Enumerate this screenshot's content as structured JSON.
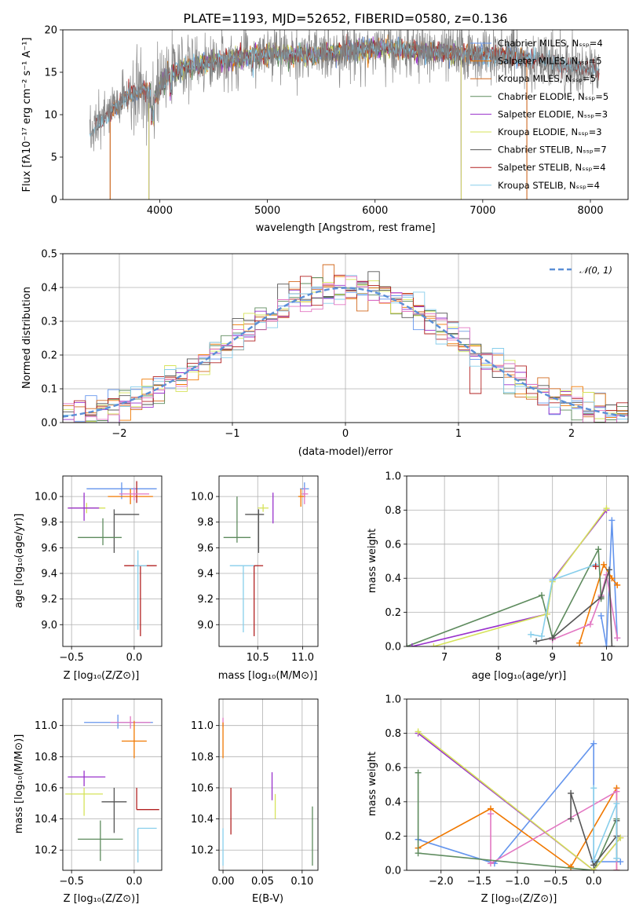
{
  "figure": {
    "title": "PLATE=1193, MJD=52652, FIBERID=0580, z=0.136"
  },
  "panels": {
    "spectrum": {
      "xlabel": "wavelength [Angstrom, rest frame]",
      "ylabel": "Flux [fλ10⁻¹⁷ erg cm⁻² s⁻¹ A⁻¹]"
    },
    "residuals": {
      "xlabel": "(data-model)/error",
      "ylabel": "Normed distribution",
      "legend": "𝒩(0, 1)"
    },
    "age_vs_Z": {
      "xlabel": "Z [log₁₀(Z/Z⊙)]",
      "ylabel": "age  [log₁₀(age/yr)]"
    },
    "age_vs_mass": {
      "xlabel": "mass [log₁₀(M/M⊙)]"
    },
    "weight_vs_age": {
      "xlabel": "age  [log₁₀(age/yr)]",
      "ylabel": "mass weight"
    },
    "mass_vs_Z": {
      "xlabel": "Z [log₁₀(Z/Z⊙)]",
      "ylabel": "mass [log₁₀(M/M⊙)]"
    },
    "mass_vs_ebv": {
      "xlabel": "E(B-V)"
    },
    "weight_vs_Z": {
      "xlabel": "Z [log₁₀(Z/Z⊙)]",
      "ylabel": "mass weight"
    }
  },
  "chart_data": [
    {
      "id": "spectrum",
      "type": "line",
      "title": "PLATE=1193, MJD=52652, FIBERID=0580, z=0.136",
      "xlabel": "wavelength [Angstrom, rest frame]",
      "ylabel": "Flux [f_λ 10^-17 erg cm^-2 s^-1 A^-1]",
      "xlim": [
        3100,
        8350
      ],
      "ylim": [
        0,
        20
      ],
      "xticks": [
        4000,
        5000,
        6000,
        7000,
        8000
      ],
      "yticks": [
        0,
        5,
        10,
        15,
        20
      ],
      "grid": false,
      "legend_position": "top-right",
      "data_color": "#808080",
      "profile_x": [
        3350,
        3450,
        3550,
        3700,
        3850,
        3950,
        4100,
        4300,
        4500,
        4800,
        5100,
        5400,
        5700,
        6000,
        6300,
        6600,
        6900,
        7200,
        7500,
        7800,
        8100
      ],
      "profile_y": [
        8.2,
        9.0,
        10.5,
        12.2,
        13.0,
        12.2,
        15.0,
        15.8,
        16.2,
        16.8,
        17.2,
        17.0,
        17.5,
        17.8,
        17.6,
        17.3,
        17.2,
        17.0,
        16.5,
        15.8,
        15.0
      ],
      "series": [
        {
          "name": "Chabrier MILES, Nₛₛₚ=4",
          "color": "#6495ed",
          "xrange": [
            3540,
            7410
          ]
        },
        {
          "name": "Salpeter MILES, Nₛₛₚ=5",
          "color": "#f07800",
          "xrange": [
            3540,
            7410
          ]
        },
        {
          "name": "Kroupa MILES, Nₛₛₚ=5",
          "color": "#d2691e",
          "xrange": [
            3540,
            7410
          ]
        },
        {
          "name": "Chabrier ELODIE, Nₛₛₚ=5",
          "color": "#5e8b5e",
          "xrange": [
            3900,
            6800
          ]
        },
        {
          "name": "Salpeter ELODIE, Nₛₛₚ=3",
          "color": "#9932cc",
          "xrange": [
            3900,
            6800
          ]
        },
        {
          "name": "Kroupa ELODIE, Nₛₛₚ=3",
          "color": "#d6e35a",
          "xrange": [
            3900,
            6800
          ]
        },
        {
          "name": "Chabrier STELIB, Nₛₛₚ=7",
          "color": "#555555",
          "xrange": [
            3400,
            8080
          ]
        },
        {
          "name": "Salpeter STELIB, Nₛₛₚ=4",
          "color": "#b22222",
          "xrange": [
            3400,
            8080
          ]
        },
        {
          "name": "Kroupa STELIB, Nₛₛₚ=4",
          "color": "#87ceeb",
          "xrange": [
            3350,
            8080
          ]
        }
      ]
    },
    {
      "id": "residuals",
      "type": "histogram",
      "xlabel": "(data-model)/error",
      "ylabel": "Normed distribution",
      "xlim": [
        -2.5,
        2.5
      ],
      "ylim": [
        0,
        0.5
      ],
      "xticks": [
        -2,
        -1,
        0,
        1,
        2
      ],
      "yticks": [
        0.0,
        0.1,
        0.2,
        0.3,
        0.4,
        0.5
      ],
      "grid": true,
      "bin_width": 0.1,
      "legend_position": "top-right",
      "reference_curve": {
        "name": "𝒩(0, 1)",
        "mean": 0,
        "sigma": 1,
        "color": "#5b8fd6",
        "style": "dashed"
      },
      "histogram_colors": [
        "#6495ed",
        "#f07800",
        "#d2691e",
        "#5e8b5e",
        "#9932cc",
        "#d6e35a",
        "#555555",
        "#b22222",
        "#87ceeb",
        "#e377c2"
      ]
    },
    {
      "id": "age_vs_Z",
      "type": "errorbar",
      "xlabel": "Z [log10(Z/Z⊙)]",
      "ylabel": "age [log10(age/yr)]",
      "xlim": [
        -0.57,
        0.22
      ],
      "ylim": [
        8.83,
        10.16
      ],
      "xticks": [
        -0.5,
        0.0
      ],
      "yticks": [
        9.0,
        9.2,
        9.4,
        9.6,
        9.8,
        10.0
      ],
      "grid": true,
      "points": [
        {
          "color": "#6495ed",
          "x": -0.1,
          "xerr": [
            0.28,
            0.28
          ],
          "y": 10.06,
          "yerr": [
            0.08,
            0.05
          ]
        },
        {
          "color": "#f07800",
          "x": -0.03,
          "xerr": [
            0.18,
            0.18
          ],
          "y": 10.0,
          "yerr": [
            0.06,
            0.06
          ]
        },
        {
          "color": "#b22222",
          "x": 0.02,
          "xerr": [
            0.0,
            0.0
          ],
          "y": 10.05,
          "yerr": [
            0.1,
            0.07
          ]
        },
        {
          "color": "#e377c2",
          "x": 0.0,
          "xerr": [
            0.12,
            0.12
          ],
          "y": 10.02,
          "yerr": [
            0.05,
            0.05
          ]
        },
        {
          "color": "#d6e35a",
          "x": -0.38,
          "xerr": [
            0.15,
            0.15
          ],
          "y": 9.91,
          "yerr": [
            0.04,
            0.04
          ]
        },
        {
          "color": "#9932cc",
          "x": -0.4,
          "xerr": [
            0.13,
            0.12
          ],
          "y": 9.91,
          "yerr": [
            0.1,
            0.12
          ]
        },
        {
          "color": "#555555",
          "x": -0.16,
          "xerr": [
            0.0,
            0.2
          ],
          "y": 9.86,
          "yerr": [
            0.3,
            0.04
          ]
        },
        {
          "color": "#5e8b5e",
          "x": -0.25,
          "xerr": [
            0.2,
            0.15
          ],
          "y": 9.68,
          "yerr": [
            0.06,
            0.15
          ]
        },
        {
          "color": "#87ceeb",
          "x": 0.03,
          "xerr": [
            0.0,
            0.0
          ],
          "y": 9.46,
          "yerr": [
            0.5,
            0.12
          ]
        },
        {
          "color": "#b22222",
          "x": 0.05,
          "xerr": [
            0.13,
            0.13
          ],
          "y": 9.46,
          "yerr": [
            0.55,
            0.0
          ]
        },
        {
          "color": "#87ceeb",
          "x": 0.0,
          "xerr": [
            0.0,
            0.1
          ],
          "y": 9.46,
          "yerr": [
            0.0,
            0.0
          ]
        }
      ]
    },
    {
      "id": "age_vs_mass",
      "type": "errorbar",
      "xlabel": "mass [log10(M/M⊙)]",
      "xlim": [
        10.07,
        11.17
      ],
      "ylim": [
        8.83,
        10.16
      ],
      "xticks": [
        10.5,
        11.0
      ],
      "yticks": [
        9.0,
        9.2,
        9.4,
        9.6,
        9.8,
        10.0
      ],
      "grid": true,
      "points": [
        {
          "color": "#6495ed",
          "x": 11.02,
          "xerr": [
            0.05,
            0.05
          ],
          "y": 10.06,
          "yerr": [
            0.06,
            0.05
          ]
        },
        {
          "color": "#f07800",
          "x": 10.98,
          "xerr": [
            0.03,
            0.05
          ],
          "y": 10.0,
          "yerr": [
            0.08,
            0.06
          ]
        },
        {
          "color": "#e377c2",
          "x": 11.02,
          "xerr": [
            0.03,
            0.04
          ],
          "y": 10.02,
          "yerr": [
            0.08,
            0.05
          ]
        },
        {
          "color": "#9932cc",
          "x": 10.67,
          "xerr": [
            0.0,
            0.0
          ],
          "y": 9.91,
          "yerr": [
            0.12,
            0.12
          ]
        },
        {
          "color": "#d6e35a",
          "x": 10.56,
          "xerr": [
            0.06,
            0.06
          ],
          "y": 9.91,
          "yerr": [
            0.03,
            0.03
          ]
        },
        {
          "color": "#555555",
          "x": 10.51,
          "xerr": [
            0.15,
            0.06
          ],
          "y": 9.86,
          "yerr": [
            0.3,
            0.04
          ]
        },
        {
          "color": "#5e8b5e",
          "x": 10.27,
          "xerr": [
            0.15,
            0.15
          ],
          "y": 9.68,
          "yerr": [
            0.04,
            0.32
          ]
        },
        {
          "color": "#87ceeb",
          "x": 10.34,
          "xerr": [
            0.15,
            0.15
          ],
          "y": 9.46,
          "yerr": [
            0.52,
            0.0
          ]
        },
        {
          "color": "#b22222",
          "x": 10.46,
          "xerr": [
            0.0,
            0.1
          ],
          "y": 9.46,
          "yerr": [
            0.55,
            0.0
          ]
        }
      ]
    },
    {
      "id": "weight_vs_age",
      "type": "line",
      "xlabel": "age [log10(age/yr)]",
      "ylabel": "mass weight",
      "xlim": [
        6.3,
        10.4
      ],
      "ylim": [
        0,
        1.0
      ],
      "xticks": [
        7,
        8,
        9,
        10
      ],
      "yticks": [
        0.0,
        0.2,
        0.4,
        0.6,
        0.8,
        1.0
      ],
      "grid": true,
      "series": [
        {
          "color": "#6495ed",
          "x": [
            9.9,
            10.0,
            10.1,
            10.2
          ],
          "y": [
            0.18,
            0.0,
            0.74,
            0.05
          ]
        },
        {
          "color": "#f07800",
          "x": [
            9.5,
            9.95,
            10.1,
            10.2
          ],
          "y": [
            0.02,
            0.48,
            0.4,
            0.36
          ]
        },
        {
          "color": "#e377c2",
          "x": [
            9.0,
            9.7,
            9.9,
            10.0,
            10.2
          ],
          "y": [
            0.04,
            0.13,
            0.3,
            0.42,
            0.05
          ]
        },
        {
          "color": "#5e8b5e",
          "x": [
            6.3,
            8.8,
            9.0,
            9.85,
            9.9
          ],
          "y": [
            0.0,
            0.3,
            0.05,
            0.57,
            0.28
          ]
        },
        {
          "color": "#9932cc",
          "x": [
            6.4,
            8.9,
            9.0,
            10.0
          ],
          "y": [
            0.0,
            0.19,
            0.39,
            0.8
          ]
        },
        {
          "color": "#d6e35a",
          "x": [
            6.8,
            8.9,
            9.0,
            10.0
          ],
          "y": [
            0.0,
            0.19,
            0.38,
            0.81
          ]
        },
        {
          "color": "#555555",
          "x": [
            8.7,
            9.0,
            9.9,
            10.05,
            10.1
          ],
          "y": [
            0.03,
            0.05,
            0.29,
            0.45,
            0.0
          ]
        },
        {
          "color": "#87ceeb",
          "x": [
            8.6,
            8.8,
            9.0,
            9.8
          ],
          "y": [
            0.07,
            0.06,
            0.39,
            0.48
          ]
        },
        {
          "color": "#b22222",
          "x": [
            9.8
          ],
          "y": [
            0.47
          ]
        }
      ]
    },
    {
      "id": "mass_vs_Z",
      "type": "errorbar",
      "xlabel": "Z [log10(Z/Z⊙)]",
      "ylabel": "mass [log10(M/M⊙)]",
      "xlim": [
        -0.57,
        0.22
      ],
      "ylim": [
        10.07,
        11.17
      ],
      "xticks": [
        -0.5,
        0.0
      ],
      "yticks": [
        10.2,
        10.4,
        10.6,
        10.8,
        11.0
      ],
      "grid": true,
      "points": [
        {
          "color": "#6495ed",
          "x": -0.13,
          "xerr": [
            0.27,
            0.28
          ],
          "y": 11.02,
          "yerr": [
            0.04,
            0.05
          ]
        },
        {
          "color": "#e377c2",
          "x": -0.03,
          "xerr": [
            0.16,
            0.16
          ],
          "y": 11.02,
          "yerr": [
            0.04,
            0.04
          ]
        },
        {
          "color": "#f07800",
          "x": 0.0,
          "xerr": [
            0.1,
            0.1
          ],
          "y": 10.9,
          "yerr": [
            0.11,
            0.13
          ]
        },
        {
          "color": "#9932cc",
          "x": -0.4,
          "xerr": [
            0.13,
            0.17
          ],
          "y": 10.67,
          "yerr": [
            0.06,
            0.04
          ]
        },
        {
          "color": "#d6e35a",
          "x": -0.4,
          "xerr": [
            0.15,
            0.15
          ],
          "y": 10.56,
          "yerr": [
            0.14,
            0.04
          ]
        },
        {
          "color": "#555555",
          "x": -0.16,
          "xerr": [
            0.1,
            0.1
          ],
          "y": 10.51,
          "yerr": [
            0.2,
            0.09
          ]
        },
        {
          "color": "#b22222",
          "x": 0.02,
          "xerr": [
            0.0,
            0.18
          ],
          "y": 10.46,
          "yerr": [
            0.0,
            0.14
          ]
        },
        {
          "color": "#87ceeb",
          "x": 0.03,
          "xerr": [
            0.0,
            0.15
          ],
          "y": 10.34,
          "yerr": [
            0.22,
            0.0
          ]
        },
        {
          "color": "#5e8b5e",
          "x": -0.27,
          "xerr": [
            0.18,
            0.18
          ],
          "y": 10.27,
          "yerr": [
            0.14,
            0.12
          ]
        }
      ]
    },
    {
      "id": "mass_vs_ebv",
      "type": "errorbar",
      "xlabel": "E(B-V)",
      "xlim": [
        -0.005,
        0.12
      ],
      "ylim": [
        10.07,
        11.17
      ],
      "xticks": [
        0.0,
        0.05,
        0.1
      ],
      "yticks": [
        10.2,
        10.4,
        10.6,
        10.8,
        11.0
      ],
      "grid": true,
      "points": [
        {
          "color": "#e377c2",
          "x": 0.0,
          "xerr": [
            0.0,
            0.0
          ],
          "y": 11.02,
          "yerr": [
            0.03,
            0.03
          ]
        },
        {
          "color": "#f07800",
          "x": 0.0,
          "xerr": [
            0.0,
            0.0
          ],
          "y": 10.9,
          "yerr": [
            0.11,
            0.12
          ]
        },
        {
          "color": "#b22222",
          "x": 0.01,
          "xerr": [
            0.0,
            0.0
          ],
          "y": 10.46,
          "yerr": [
            0.16,
            0.14
          ]
        },
        {
          "color": "#9932cc",
          "x": 0.062,
          "xerr": [
            0.0,
            0.0
          ],
          "y": 10.62,
          "yerr": [
            0.1,
            0.08
          ]
        },
        {
          "color": "#d6e35a",
          "x": 0.066,
          "xerr": [
            0.0,
            0.0
          ],
          "y": 10.52,
          "yerr": [
            0.12,
            0.04
          ]
        },
        {
          "color": "#87ceeb",
          "x": 0.0,
          "xerr": [
            0.0,
            0.0
          ],
          "y": 10.34,
          "yerr": [
            0.24,
            0.0
          ]
        },
        {
          "color": "#5e8b5e",
          "x": 0.113,
          "xerr": [
            0.0,
            0.0
          ],
          "y": 10.3,
          "yerr": [
            0.2,
            0.18
          ]
        }
      ]
    },
    {
      "id": "weight_vs_Z",
      "type": "line",
      "xlabel": "Z [log10(Z/Z⊙)]",
      "ylabel": "mass weight",
      "xlim": [
        -2.45,
        0.45
      ],
      "ylim": [
        0,
        1.0
      ],
      "xticks": [
        -2.0,
        -1.5,
        -1.0,
        -0.5,
        0.0
      ],
      "yticks": [
        0.0,
        0.2,
        0.4,
        0.6,
        0.8,
        1.0
      ],
      "grid": true,
      "series": [
        {
          "color": "#6495ed",
          "x": [
            -2.3,
            -1.3,
            0.0,
            0.0,
            0.35
          ],
          "y": [
            0.18,
            0.04,
            0.74,
            0.05,
            0.05
          ]
        },
        {
          "color": "#f07800",
          "x": [
            -2.3,
            -1.35,
            -0.3,
            0.3,
            0.3
          ],
          "y": [
            0.13,
            0.36,
            0.02,
            0.48,
            0.0
          ]
        },
        {
          "color": "#e377c2",
          "x": [
            -1.35,
            -1.35,
            0.3,
            0.3
          ],
          "y": [
            0.33,
            0.04,
            0.46,
            0.0
          ]
        },
        {
          "color": "#5e8b5e",
          "x": [
            -2.3,
            -2.3,
            0.0,
            0.3,
            0.3
          ],
          "y": [
            0.57,
            0.1,
            0.0,
            0.3,
            0.07
          ]
        },
        {
          "color": "#9932cc",
          "x": [
            -2.3,
            0.0,
            0.35
          ],
          "y": [
            0.8,
            0.0,
            0.19
          ]
        },
        {
          "color": "#d6e35a",
          "x": [
            -2.3,
            0.0,
            0.35
          ],
          "y": [
            0.81,
            0.0,
            0.19
          ]
        },
        {
          "color": "#555555",
          "x": [
            -0.3,
            -0.3,
            0.0,
            0.3,
            0.3
          ],
          "y": [
            0.3,
            0.45,
            0.03,
            0.2,
            0.29
          ]
        },
        {
          "color": "#87ceeb",
          "x": [
            0.0,
            0.0,
            0.3,
            0.3
          ],
          "y": [
            0.48,
            0.06,
            0.39,
            0.07
          ]
        }
      ]
    }
  ]
}
